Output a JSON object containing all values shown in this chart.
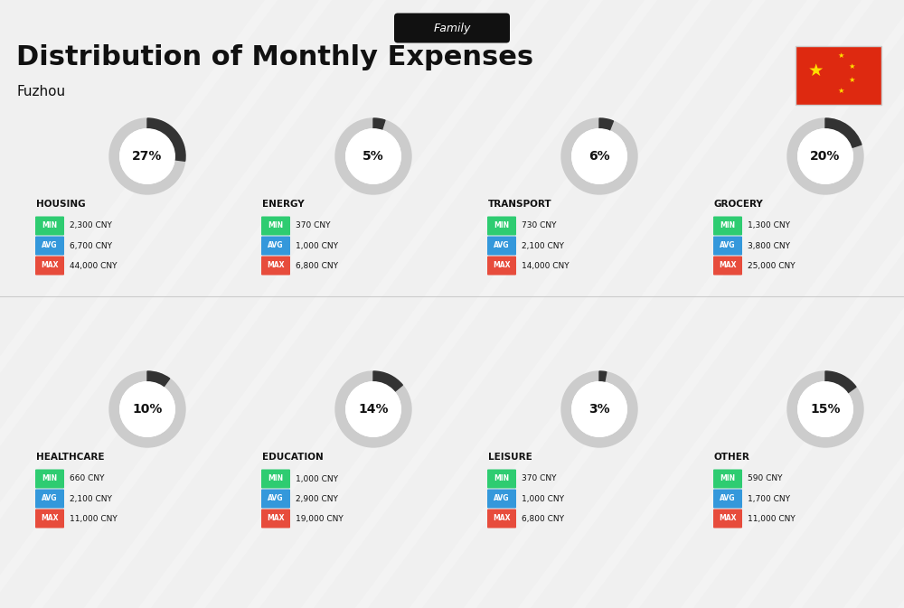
{
  "title": "Distribution of Monthly Expenses",
  "subtitle": "Family",
  "city": "Fuzhou",
  "bg_color": "#f0f0f0",
  "categories": [
    {
      "name": "HOUSING",
      "pct": 27,
      "min": "2,300 CNY",
      "avg": "6,700 CNY",
      "max": "44,000 CNY",
      "row": 0,
      "col": 0
    },
    {
      "name": "ENERGY",
      "pct": 5,
      "min": "370 CNY",
      "avg": "1,000 CNY",
      "max": "6,800 CNY",
      "row": 0,
      "col": 1
    },
    {
      "name": "TRANSPORT",
      "pct": 6,
      "min": "730 CNY",
      "avg": "2,100 CNY",
      "max": "14,000 CNY",
      "row": 0,
      "col": 2
    },
    {
      "name": "GROCERY",
      "pct": 20,
      "min": "1,300 CNY",
      "avg": "3,800 CNY",
      "max": "25,000 CNY",
      "row": 0,
      "col": 3
    },
    {
      "name": "HEALTHCARE",
      "pct": 10,
      "min": "660 CNY",
      "avg": "2,100 CNY",
      "max": "11,000 CNY",
      "row": 1,
      "col": 0
    },
    {
      "name": "EDUCATION",
      "pct": 14,
      "min": "1,000 CNY",
      "avg": "2,900 CNY",
      "max": "19,000 CNY",
      "row": 1,
      "col": 1
    },
    {
      "name": "LEISURE",
      "pct": 3,
      "min": "370 CNY",
      "avg": "1,000 CNY",
      "max": "6,800 CNY",
      "row": 1,
      "col": 2
    },
    {
      "name": "OTHER",
      "pct": 15,
      "min": "590 CNY",
      "avg": "1,700 CNY",
      "max": "11,000 CNY",
      "row": 1,
      "col": 3
    }
  ],
  "min_color": "#2ecc71",
  "avg_color": "#3498db",
  "max_color": "#e74c3c",
  "arc_color": "#333333",
  "arc_bg_color": "#cccccc",
  "label_color": "#ffffff",
  "title_color": "#111111",
  "cat_color": "#111111",
  "pct_color": "#111111"
}
